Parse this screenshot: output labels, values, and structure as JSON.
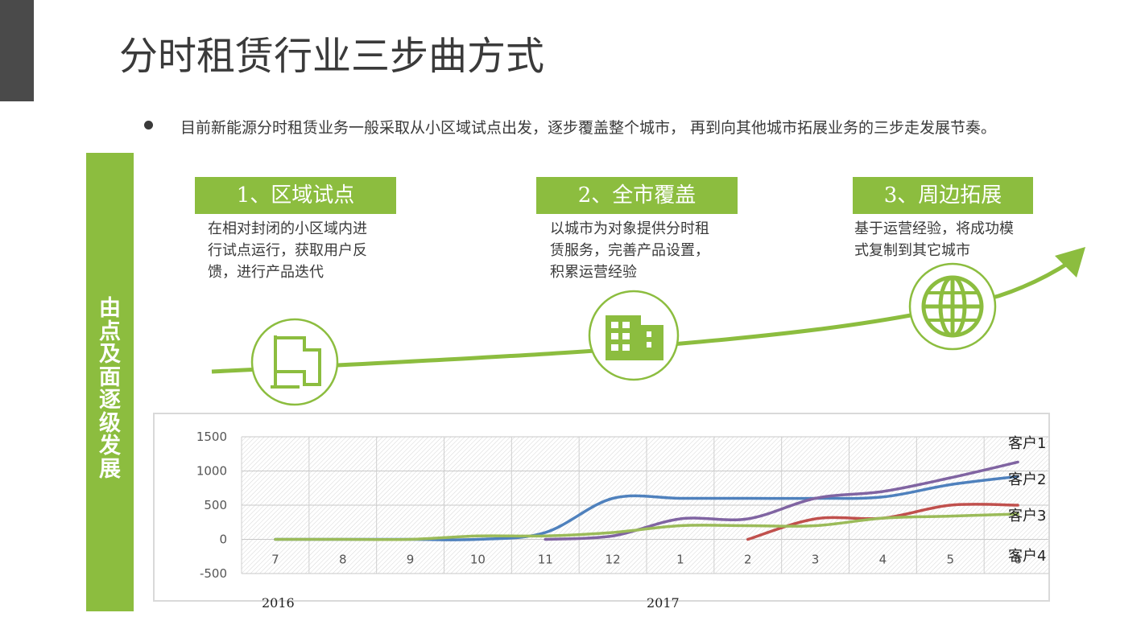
{
  "title": "分时租赁行业三步曲方式",
  "bullet": "目前新能源分时租赁业务一般采取从小区域试点出发，逐步覆盖整个城市， 再到向其他城市拓展业务的三步走发展节奏。",
  "side_label": [
    "由",
    "点",
    "及",
    "面",
    "逐",
    "级",
    "发",
    "展"
  ],
  "steps": [
    {
      "label": "1、区域试点",
      "desc": [
        "在相对封闭的小区域内进",
        "行试点运行，获取用户反",
        "馈，进行产品迭代"
      ],
      "icon": "flag-icon"
    },
    {
      "label": "2、全市覆盖",
      "desc": [
        "以城市为对象提供分时租",
        "赁服务，完善产品设置，",
        "积累运营经验"
      ],
      "icon": "building-icon"
    },
    {
      "label": "3、周边拓展",
      "desc": [
        "基于运营经验，将成功模",
        "式复制到其它城市"
      ],
      "icon": "globe-icon"
    }
  ],
  "colors": {
    "accent": "#8cbd3f",
    "blue": "#4f81bd",
    "red": "#c0504d",
    "green": "#9bbb59",
    "purple": "#8064a2"
  },
  "chart_data": {
    "type": "line",
    "categories": [
      "7",
      "8",
      "9",
      "10",
      "11",
      "12",
      "1",
      "2",
      "3",
      "4",
      "5",
      "6"
    ],
    "year_labels": [
      "2016",
      "2017"
    ],
    "ylim": [
      -500,
      1500
    ],
    "yticks": [
      -500,
      0,
      500,
      1000,
      1500
    ],
    "series_labels": [
      "客户1",
      "客户2",
      "客户3",
      "客户4"
    ],
    "series": [
      {
        "color": "#4f81bd",
        "values": [
          0,
          0,
          0,
          0,
          100,
          600,
          600,
          600,
          600,
          620,
          800,
          920
        ]
      },
      {
        "color": "#8064a2",
        "values": [
          null,
          null,
          null,
          null,
          0,
          50,
          300,
          300,
          600,
          700,
          900,
          1130
        ]
      },
      {
        "color": "#c0504d",
        "values": [
          null,
          null,
          null,
          null,
          null,
          null,
          null,
          0,
          300,
          310,
          500,
          500
        ]
      },
      {
        "color": "#9bbb59",
        "values": [
          0,
          0,
          0,
          50,
          50,
          100,
          200,
          200,
          200,
          310,
          340,
          370
        ]
      }
    ],
    "grid": true
  }
}
